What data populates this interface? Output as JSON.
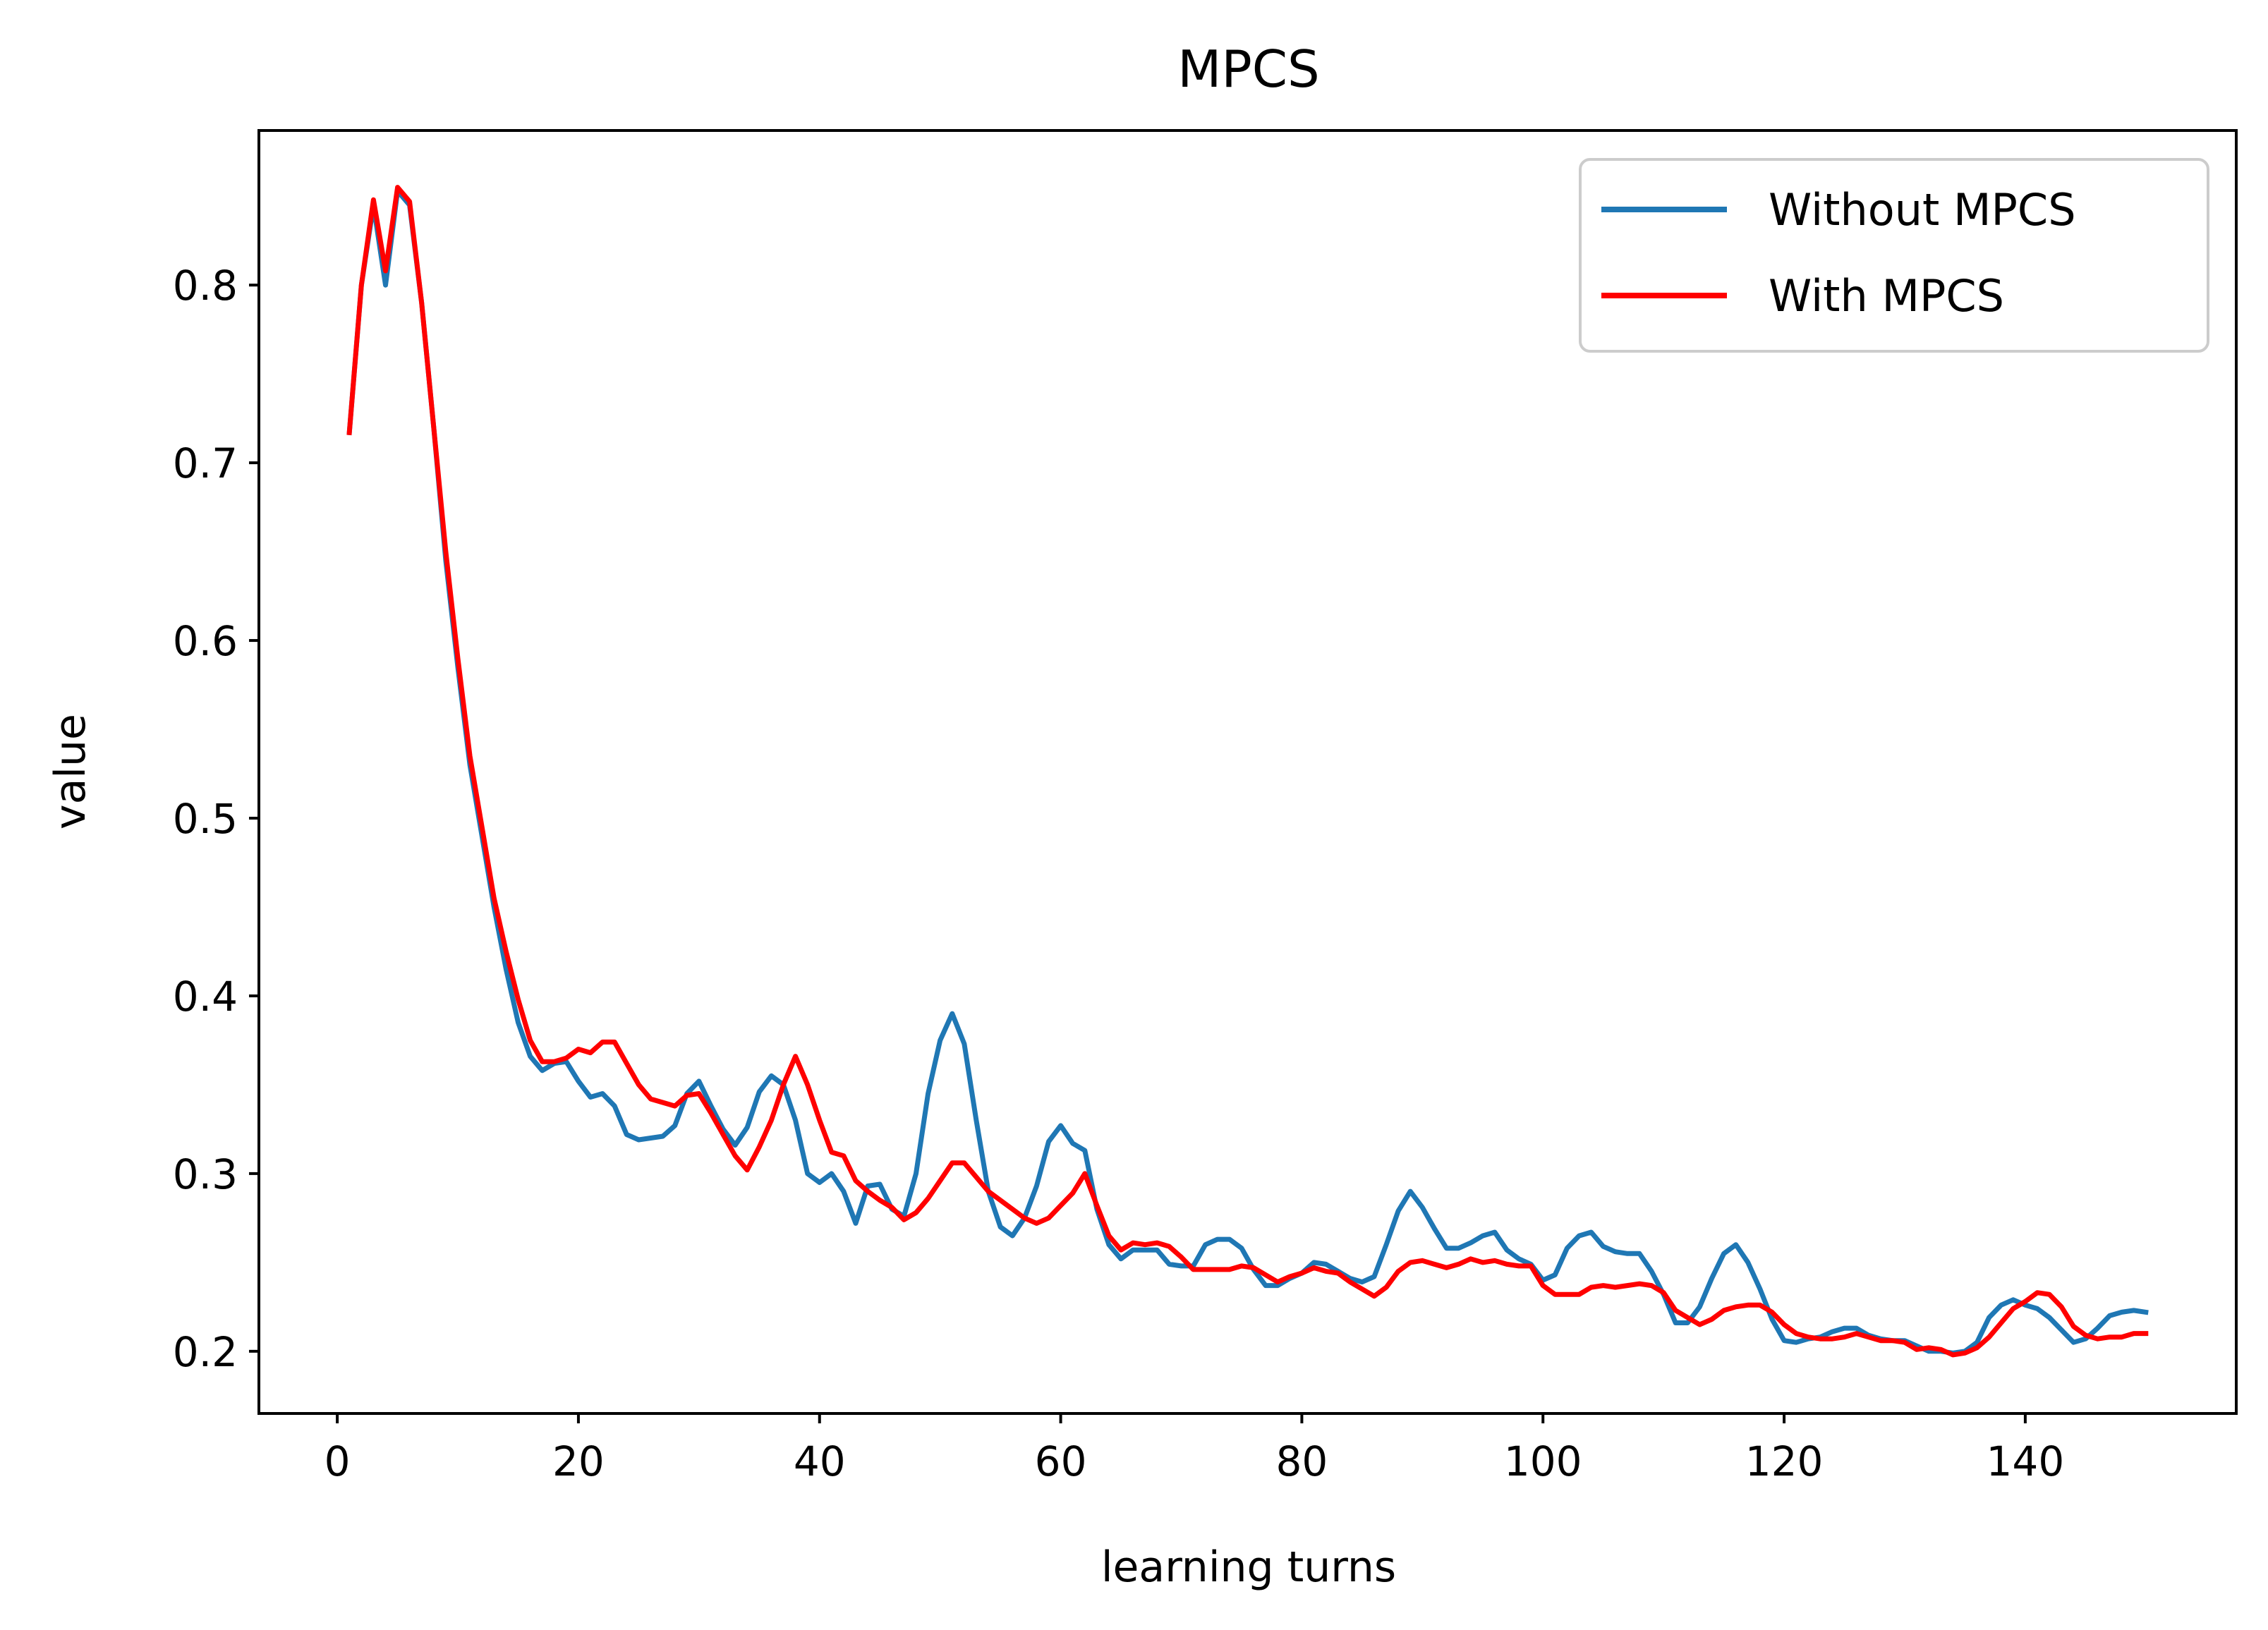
{
  "chart_data": {
    "type": "line",
    "title": "MPCS",
    "xlabel": "learning turns",
    "ylabel": "value",
    "xlim": [
      -6.5,
      157.5
    ],
    "ylim": [
      0.165,
      0.887
    ],
    "xticks": [
      0,
      20,
      40,
      60,
      80,
      100,
      120,
      140
    ],
    "yticks": [
      0.2,
      0.3,
      0.4,
      0.5,
      0.6,
      0.7,
      0.8
    ],
    "xtick_labels": [
      "0",
      "20",
      "40",
      "60",
      "80",
      "100",
      "120",
      "140"
    ],
    "ytick_labels": [
      "0.2",
      "0.3",
      "0.4",
      "0.5",
      "0.6",
      "0.7",
      "0.8"
    ],
    "grid": false,
    "legend_position": "top-right",
    "x": [
      1,
      2,
      3,
      4,
      5,
      6,
      7,
      8,
      9,
      10,
      11,
      12,
      13,
      14,
      15,
      16,
      17,
      18,
      19,
      20,
      21,
      22,
      23,
      24,
      25,
      26,
      27,
      28,
      29,
      30,
      31,
      32,
      33,
      34,
      35,
      36,
      37,
      38,
      39,
      40,
      41,
      42,
      43,
      44,
      45,
      46,
      47,
      48,
      49,
      50,
      51,
      52,
      53,
      54,
      55,
      56,
      57,
      58,
      59,
      60,
      61,
      62,
      63,
      64,
      65,
      66,
      67,
      68,
      69,
      70,
      71,
      72,
      73,
      74,
      75,
      76,
      77,
      78,
      79,
      80,
      81,
      82,
      83,
      84,
      85,
      86,
      87,
      88,
      89,
      90,
      91,
      92,
      93,
      94,
      95,
      96,
      97,
      98,
      99,
      100,
      101,
      102,
      103,
      104,
      105,
      106,
      107,
      108,
      109,
      110,
      111,
      112,
      113,
      114,
      115,
      116,
      117,
      118,
      119,
      120,
      121,
      122,
      123,
      124,
      125,
      126,
      127,
      128,
      129,
      130,
      131,
      132,
      133,
      134,
      135,
      136,
      137,
      138,
      139,
      140,
      141,
      142,
      143,
      144,
      145,
      146,
      147,
      148,
      149,
      150
    ],
    "series": [
      {
        "name": "Without MPCS",
        "color": "#1f77b4",
        "values": [
          0.717,
          0.8,
          0.845,
          0.8,
          0.853,
          0.845,
          0.79,
          0.72,
          0.645,
          0.585,
          0.53,
          0.49,
          0.45,
          0.415,
          0.385,
          0.366,
          0.358,
          0.362,
          0.363,
          0.352,
          0.343,
          0.345,
          0.338,
          0.322,
          0.319,
          0.32,
          0.321,
          0.327,
          0.345,
          0.352,
          0.338,
          0.325,
          0.316,
          0.326,
          0.346,
          0.355,
          0.35,
          0.33,
          0.3,
          0.295,
          0.3,
          0.29,
          0.272,
          0.293,
          0.294,
          0.28,
          0.276,
          0.3,
          0.345,
          0.375,
          0.39,
          0.373,
          0.33,
          0.29,
          0.27,
          0.265,
          0.275,
          0.293,
          0.318,
          0.327,
          0.317,
          0.313,
          0.28,
          0.26,
          0.252,
          0.257,
          0.257,
          0.257,
          0.249,
          0.248,
          0.248,
          0.26,
          0.263,
          0.263,
          0.258,
          0.246,
          0.237,
          0.237,
          0.241,
          0.244,
          0.25,
          0.249,
          0.245,
          0.241,
          0.239,
          0.242,
          0.26,
          0.279,
          0.29,
          0.281,
          0.269,
          0.258,
          0.258,
          0.261,
          0.265,
          0.267,
          0.257,
          0.252,
          0.249,
          0.24,
          0.243,
          0.258,
          0.265,
          0.267,
          0.259,
          0.256,
          0.255,
          0.255,
          0.245,
          0.232,
          0.216,
          0.216,
          0.225,
          0.241,
          0.255,
          0.26,
          0.25,
          0.235,
          0.218,
          0.206,
          0.205,
          0.207,
          0.208,
          0.211,
          0.213,
          0.213,
          0.209,
          0.207,
          0.206,
          0.206,
          0.203,
          0.2,
          0.2,
          0.199,
          0.2,
          0.205,
          0.219,
          0.226,
          0.229,
          0.226,
          0.224,
          0.219,
          0.212,
          0.205,
          0.207,
          0.213,
          0.22,
          0.222,
          0.223,
          0.222
        ]
      },
      {
        "name": "With MPCS",
        "color": "#ff0000",
        "values": [
          0.717,
          0.8,
          0.848,
          0.808,
          0.855,
          0.847,
          0.79,
          0.72,
          0.65,
          0.59,
          0.535,
          0.495,
          0.455,
          0.425,
          0.398,
          0.375,
          0.363,
          0.363,
          0.365,
          0.37,
          0.368,
          0.374,
          0.374,
          0.362,
          0.35,
          0.342,
          0.34,
          0.338,
          0.344,
          0.345,
          0.334,
          0.322,
          0.31,
          0.302,
          0.315,
          0.33,
          0.35,
          0.366,
          0.35,
          0.33,
          0.312,
          0.31,
          0.296,
          0.29,
          0.285,
          0.281,
          0.274,
          0.278,
          0.286,
          0.296,
          0.306,
          0.306,
          0.298,
          0.29,
          0.285,
          0.28,
          0.275,
          0.272,
          0.275,
          0.282,
          0.289,
          0.3,
          0.282,
          0.265,
          0.257,
          0.261,
          0.26,
          0.261,
          0.259,
          0.253,
          0.246,
          0.246,
          0.246,
          0.246,
          0.248,
          0.247,
          0.243,
          0.239,
          0.242,
          0.244,
          0.247,
          0.245,
          0.244,
          0.239,
          0.235,
          0.231,
          0.236,
          0.245,
          0.25,
          0.251,
          0.249,
          0.247,
          0.249,
          0.252,
          0.25,
          0.251,
          0.249,
          0.248,
          0.248,
          0.237,
          0.232,
          0.232,
          0.232,
          0.236,
          0.237,
          0.236,
          0.237,
          0.238,
          0.237,
          0.233,
          0.223,
          0.219,
          0.215,
          0.218,
          0.223,
          0.225,
          0.226,
          0.226,
          0.222,
          0.215,
          0.21,
          0.208,
          0.207,
          0.207,
          0.208,
          0.21,
          0.208,
          0.206,
          0.206,
          0.205,
          0.201,
          0.202,
          0.201,
          0.198,
          0.199,
          0.202,
          0.208,
          0.216,
          0.224,
          0.228,
          0.233,
          0.232,
          0.225,
          0.214,
          0.209,
          0.207,
          0.208,
          0.208,
          0.21,
          0.21
        ]
      }
    ]
  }
}
